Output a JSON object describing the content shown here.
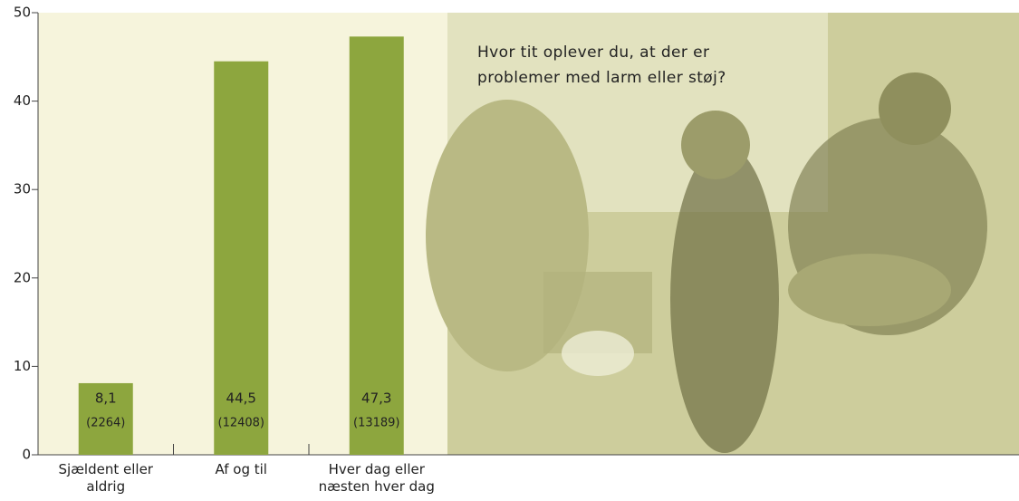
{
  "chart_data": {
    "type": "bar",
    "annotation": "Hvor tit oplever du, at der er problemer med larm eller støj?",
    "categories": [
      "Sjældent eller aldrig",
      "Af og til",
      "Hver dag eller næsten hver dag"
    ],
    "values": [
      8.1,
      44.5,
      47.3
    ],
    "value_labels": [
      "8,1",
      "44,5",
      "47,3"
    ],
    "count_labels": [
      "(2264)",
      "(12408)",
      "(13189)"
    ],
    "color": "#8da63e",
    "ylim": [
      0,
      50
    ],
    "yticks": [
      0,
      10,
      20,
      30,
      40,
      50
    ],
    "grid": false
  }
}
